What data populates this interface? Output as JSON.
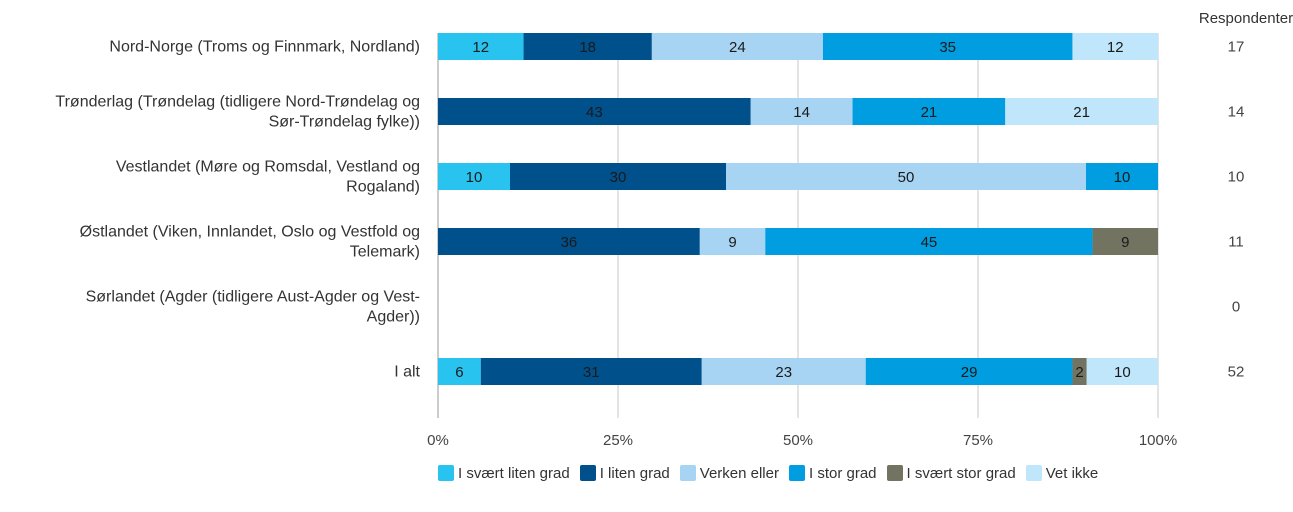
{
  "chart_data": {
    "type": "bar",
    "orientation": "horizontal",
    "stacked": "percent",
    "categories": [
      "Nord-Norge (Troms og Finnmark, Nordland)",
      "Trønderlag (Trøndelag (tidligere Nord-Trøndelag og Sør-Trøndelag fylke))",
      "Vestlandet (Møre og Romsdal, Vestland og Rogaland)",
      "Østlandet (Viken, Innlandet, Oslo og Vestfold og Telemark)",
      "Sørlandet (Agder (tidligere Aust-Agder og Vest-Agder))",
      "I alt"
    ],
    "category_lines": [
      [
        "Nord-Norge (Troms og Finnmark, Nordland)"
      ],
      [
        "Trønderlag (Trøndelag (tidligere Nord-Trøndelag og",
        "Sør-Trøndelag fylke))"
      ],
      [
        "Vestlandet (Møre og Romsdal, Vestland og",
        "Rogaland)"
      ],
      [
        "Østlandet (Viken, Innlandet, Oslo og Vestfold og",
        "Telemark)"
      ],
      [
        "Sørlandet (Agder (tidligere Aust-Agder og Vest-",
        "Agder))"
      ],
      [
        "I alt"
      ]
    ],
    "series": [
      {
        "name": "I svært liten grad",
        "color": "#29c3f0",
        "values": [
          12,
          0,
          10,
          0,
          0,
          6
        ]
      },
      {
        "name": "I liten grad",
        "color": "#00508c",
        "values": [
          18,
          43,
          30,
          36,
          0,
          31
        ]
      },
      {
        "name": "Verken eller",
        "color": "#a8d4f4",
        "values": [
          24,
          14,
          50,
          9,
          0,
          23
        ]
      },
      {
        "name": "I stor grad",
        "color": "#009ee0",
        "values": [
          35,
          21,
          10,
          45,
          0,
          29
        ]
      },
      {
        "name": "I svært stor grad",
        "color": "#727461",
        "values": [
          0,
          0,
          0,
          9,
          0,
          2
        ]
      },
      {
        "name": "Vet ikke",
        "color": "#bfe6fa",
        "values": [
          12,
          21,
          0,
          0,
          0,
          10
        ]
      }
    ],
    "xticks": [
      "0%",
      "25%",
      "50%",
      "75%",
      "100%"
    ],
    "xlim": [
      0,
      100
    ],
    "respondents_header": "Respondenter",
    "respondents": [
      "17",
      "14",
      "10",
      "11",
      "0",
      "52"
    ],
    "grid": true,
    "legend_position": "bottom"
  }
}
